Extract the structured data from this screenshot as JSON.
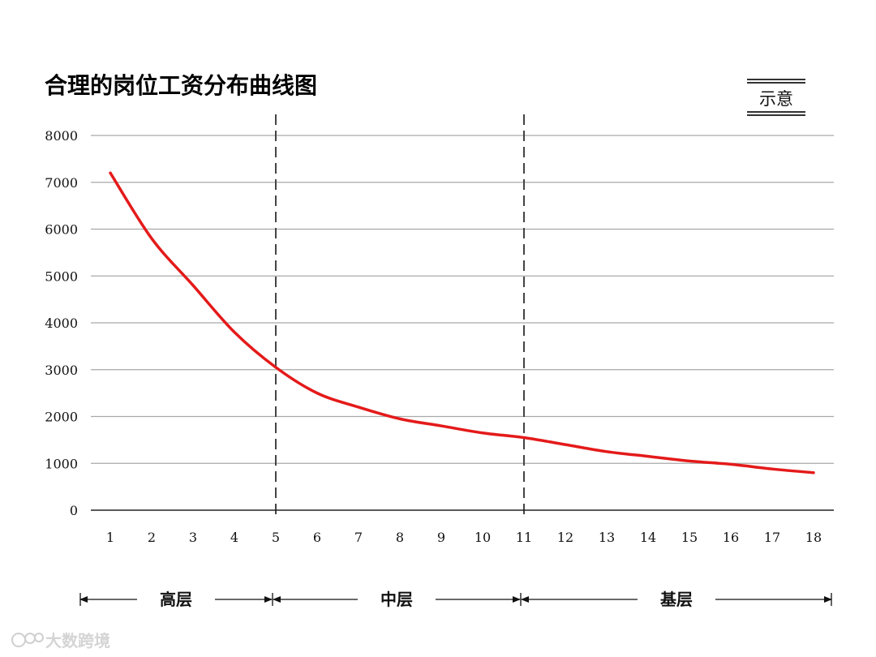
{
  "title": "合理的岗位工资分布曲线图",
  "badge": "示意",
  "chart_data": {
    "type": "line",
    "x": [
      1,
      2,
      3,
      4,
      5,
      6,
      7,
      8,
      9,
      10,
      11,
      12,
      13,
      14,
      15,
      16,
      17,
      18
    ],
    "series": [
      {
        "values": [
          7200,
          5800,
          4800,
          3800,
          3050,
          2500,
          2200,
          1950,
          1800,
          1650,
          1550,
          1400,
          1250,
          1150,
          1050,
          980,
          880,
          800
        ],
        "color": "#e41a1a"
      }
    ],
    "ylim": [
      0,
      8000
    ],
    "yticks": [
      0,
      1000,
      2000,
      3000,
      4000,
      5000,
      6000,
      7000,
      8000
    ],
    "xticks": [
      "1",
      "2",
      "3",
      "4",
      "5",
      "6",
      "7",
      "8",
      "9",
      "10",
      "11",
      "12",
      "13",
      "14",
      "15",
      "16",
      "17",
      "18"
    ],
    "grid": true,
    "dividers": [
      5,
      11
    ],
    "tiers": [
      {
        "label": "高层",
        "from": 1,
        "to": 5
      },
      {
        "label": "中层",
        "from": 5,
        "to": 11
      },
      {
        "label": "基层",
        "from": 11,
        "to": 18
      }
    ]
  },
  "watermark": "大数跨境"
}
